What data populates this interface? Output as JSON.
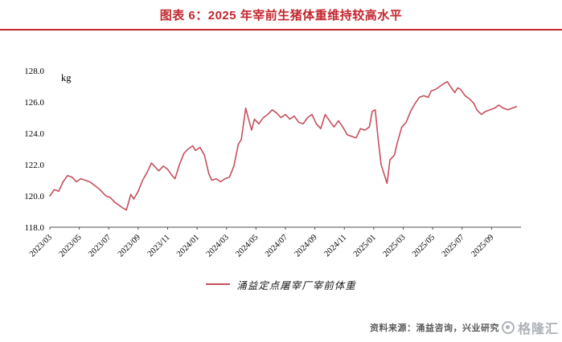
{
  "title": "图表 6：2025 年宰前生猪体重维持较高水平",
  "source": "资料来源：涌益咨询，兴业研究",
  "watermark": "格隆汇",
  "colors": {
    "accent_red": "#c3272f",
    "line": "#c5505c",
    "axis": "#4d4d4d",
    "tick_text": "#000000",
    "source_text": "#595959",
    "watermark": "#a6abb0"
  },
  "chart_data": {
    "type": "line",
    "title": "2025 年宰前生猪体重维持较高水平",
    "unit_label": "kg",
    "ylabel": "kg",
    "xlabel": "",
    "ylim": [
      118.0,
      128.0
    ],
    "yticks": [
      118.0,
      120.0,
      122.0,
      124.0,
      126.0,
      128.0
    ],
    "ytick_labels": [
      "118.0",
      "120.0",
      "122.0",
      "124.0",
      "126.0",
      "128.0"
    ],
    "grid": false,
    "legend_position": "bottom-center",
    "x_months_span": 32,
    "xtick_month_step": 2,
    "xtick_labels": [
      "2023/03",
      "2023/05",
      "2023/07",
      "2023/09",
      "2023/11",
      "2024/01",
      "2024/03",
      "2024/05",
      "2024/07",
      "2024/09",
      "2024/11",
      "2025/01",
      "2025/03",
      "2025/05",
      "2025/07",
      "2025/09"
    ],
    "series": [
      {
        "name": "涌益定点屠宰厂宰前体重",
        "color": "#c5505c",
        "points": [
          [
            0,
            120.0
          ],
          [
            0.3,
            120.4
          ],
          [
            0.6,
            120.3
          ],
          [
            0.9,
            120.9
          ],
          [
            1.2,
            121.3
          ],
          [
            1.5,
            121.2
          ],
          [
            1.8,
            120.9
          ],
          [
            2.1,
            121.1
          ],
          [
            2.4,
            121.0
          ],
          [
            2.7,
            120.9
          ],
          [
            3.0,
            120.7
          ],
          [
            3.4,
            120.4
          ],
          [
            3.8,
            120.0
          ],
          [
            4.1,
            119.9
          ],
          [
            4.4,
            119.6
          ],
          [
            4.7,
            119.4
          ],
          [
            5.0,
            119.2
          ],
          [
            5.2,
            119.1
          ],
          [
            5.5,
            120.1
          ],
          [
            5.7,
            119.8
          ],
          [
            6.0,
            120.3
          ],
          [
            6.3,
            121.0
          ],
          [
            6.6,
            121.5
          ],
          [
            6.9,
            122.1
          ],
          [
            7.1,
            121.9
          ],
          [
            7.4,
            121.6
          ],
          [
            7.7,
            121.9
          ],
          [
            8.0,
            121.7
          ],
          [
            8.3,
            121.3
          ],
          [
            8.5,
            121.1
          ],
          [
            8.8,
            122.0
          ],
          [
            9.1,
            122.7
          ],
          [
            9.4,
            123.0
          ],
          [
            9.7,
            123.2
          ],
          [
            9.9,
            122.9
          ],
          [
            10.2,
            123.1
          ],
          [
            10.5,
            122.6
          ],
          [
            10.8,
            121.4
          ],
          [
            11.0,
            121.0
          ],
          [
            11.3,
            121.1
          ],
          [
            11.6,
            120.9
          ],
          [
            11.9,
            121.1
          ],
          [
            12.2,
            121.2
          ],
          [
            12.5,
            121.9
          ],
          [
            12.8,
            123.3
          ],
          [
            13.0,
            123.6
          ],
          [
            13.3,
            125.6
          ],
          [
            13.5,
            124.9
          ],
          [
            13.7,
            124.2
          ],
          [
            13.9,
            124.9
          ],
          [
            14.2,
            124.6
          ],
          [
            14.5,
            125.0
          ],
          [
            14.8,
            125.2
          ],
          [
            15.1,
            125.5
          ],
          [
            15.4,
            125.3
          ],
          [
            15.7,
            125.0
          ],
          [
            16.0,
            125.2
          ],
          [
            16.3,
            124.9
          ],
          [
            16.6,
            125.1
          ],
          [
            16.9,
            124.7
          ],
          [
            17.2,
            124.6
          ],
          [
            17.5,
            125.0
          ],
          [
            17.8,
            125.2
          ],
          [
            18.1,
            124.6
          ],
          [
            18.4,
            124.3
          ],
          [
            18.7,
            125.2
          ],
          [
            19.0,
            124.8
          ],
          [
            19.3,
            124.4
          ],
          [
            19.6,
            124.8
          ],
          [
            19.9,
            124.4
          ],
          [
            20.2,
            123.9
          ],
          [
            20.5,
            123.8
          ],
          [
            20.8,
            123.7
          ],
          [
            21.1,
            124.3
          ],
          [
            21.4,
            124.2
          ],
          [
            21.7,
            124.4
          ],
          [
            21.9,
            125.4
          ],
          [
            22.1,
            125.5
          ],
          [
            22.3,
            123.6
          ],
          [
            22.5,
            122.0
          ],
          [
            22.7,
            121.4
          ],
          [
            22.9,
            120.8
          ],
          [
            23.1,
            122.3
          ],
          [
            23.4,
            122.6
          ],
          [
            23.6,
            123.4
          ],
          [
            23.9,
            124.4
          ],
          [
            24.2,
            124.7
          ],
          [
            24.5,
            125.4
          ],
          [
            24.8,
            125.9
          ],
          [
            25.1,
            126.3
          ],
          [
            25.4,
            126.4
          ],
          [
            25.7,
            126.3
          ],
          [
            25.9,
            126.7
          ],
          [
            26.2,
            126.8
          ],
          [
            26.5,
            127.0
          ],
          [
            26.8,
            127.2
          ],
          [
            27.0,
            127.3
          ],
          [
            27.2,
            127.0
          ],
          [
            27.5,
            126.6
          ],
          [
            27.7,
            126.9
          ],
          [
            27.9,
            126.8
          ],
          [
            28.2,
            126.4
          ],
          [
            28.5,
            126.2
          ],
          [
            28.8,
            125.9
          ],
          [
            29.0,
            125.5
          ],
          [
            29.3,
            125.2
          ],
          [
            29.6,
            125.4
          ],
          [
            29.9,
            125.5
          ],
          [
            30.2,
            125.6
          ],
          [
            30.5,
            125.8
          ],
          [
            30.8,
            125.6
          ],
          [
            31.1,
            125.5
          ],
          [
            31.4,
            125.6
          ],
          [
            31.7,
            125.7
          ]
        ]
      }
    ]
  }
}
